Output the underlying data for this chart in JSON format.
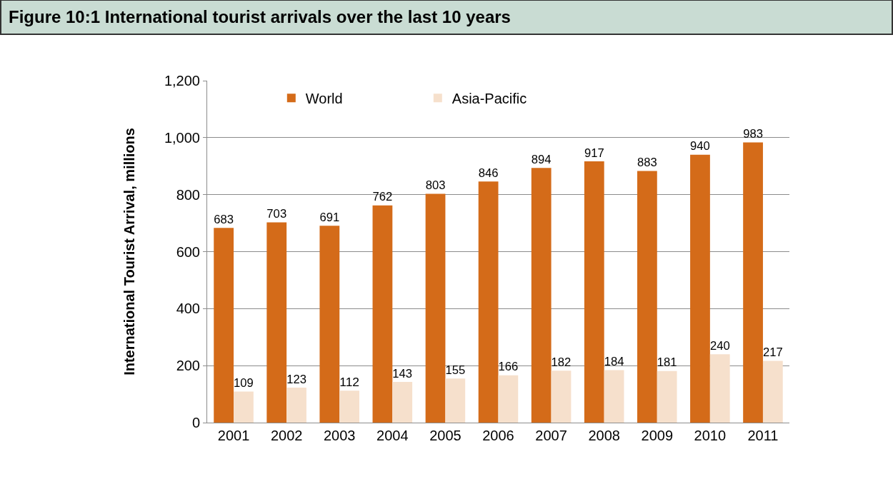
{
  "chart_data": {
    "type": "bar",
    "title": "Figure 10:1 International tourist arrivals over the last 10 years",
    "ylabel": "International Tourist Arrival, millions",
    "categories": [
      "2001",
      "2002",
      "2003",
      "2004",
      "2005",
      "2006",
      "2007",
      "2008",
      "2009",
      "2010",
      "2011"
    ],
    "series": [
      {
        "name": "World",
        "color": "#d46b19",
        "values": [
          683,
          703,
          691,
          762,
          803,
          846,
          894,
          917,
          883,
          940,
          983
        ]
      },
      {
        "name": "Asia-Pacific",
        "color": "#f6e0cc",
        "values": [
          109,
          123,
          112,
          143,
          155,
          166,
          182,
          184,
          181,
          240,
          217
        ]
      }
    ],
    "ylim": [
      0,
      1200
    ],
    "yticks": [
      0,
      200,
      400,
      600,
      800,
      {
        "value": 1000,
        "label": "1,000"
      },
      {
        "value": 1200,
        "label": "1,200"
      }
    ],
    "grid": "y",
    "legend": "top",
    "data_labels": true
  }
}
